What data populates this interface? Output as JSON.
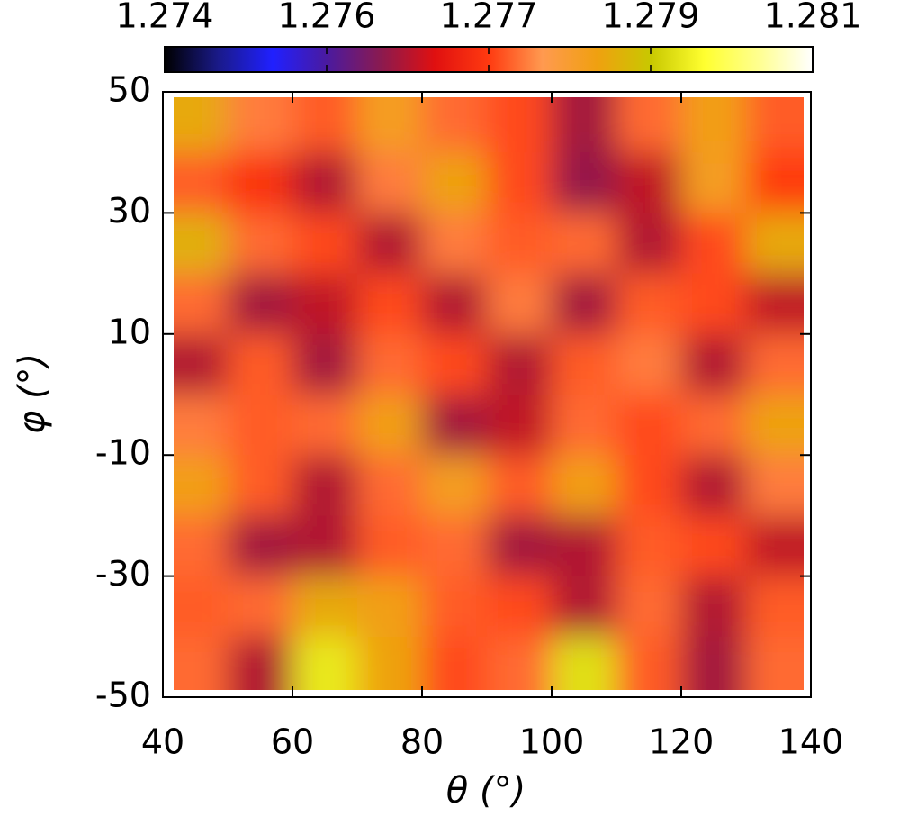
{
  "chart_data": {
    "type": "heatmap",
    "xlabel": "θ (°)",
    "ylabel": "φ (°)",
    "xlim": [
      40,
      140
    ],
    "ylim": [
      -50,
      50
    ],
    "xticks": [
      40,
      60,
      80,
      100,
      120,
      140
    ],
    "yticks": [
      -50,
      -30,
      -10,
      10,
      30,
      50
    ],
    "x": [
      45,
      55,
      65,
      75,
      85,
      95,
      105,
      115,
      125,
      135
    ],
    "y": [
      45,
      35,
      25,
      15,
      5,
      -5,
      -15,
      -25,
      -35,
      -45
    ],
    "values": [
      [
        1.2788,
        1.2779,
        1.2777,
        1.2785,
        1.2778,
        1.2776,
        1.2765,
        1.2778,
        1.2786,
        1.2777
      ],
      [
        1.2777,
        1.2774,
        1.2766,
        1.2779,
        1.2787,
        1.2776,
        1.2764,
        1.2767,
        1.2785,
        1.2775
      ],
      [
        1.2789,
        1.2778,
        1.2776,
        1.2766,
        1.2779,
        1.2777,
        1.2778,
        1.2766,
        1.2776,
        1.2788
      ],
      [
        1.2778,
        1.2765,
        1.2767,
        1.2776,
        1.2766,
        1.2779,
        1.2765,
        1.2777,
        1.2776,
        1.2767
      ],
      [
        1.2766,
        1.2777,
        1.2765,
        1.2778,
        1.2776,
        1.2766,
        1.2777,
        1.2779,
        1.2766,
        1.2778
      ],
      [
        1.2779,
        1.2777,
        1.2778,
        1.2786,
        1.2765,
        1.2767,
        1.2778,
        1.2776,
        1.2778,
        1.2787
      ],
      [
        1.2786,
        1.2777,
        1.2766,
        1.2778,
        1.2785,
        1.2777,
        1.2786,
        1.2776,
        1.2766,
        1.2779
      ],
      [
        1.2778,
        1.2765,
        1.2766,
        1.2777,
        1.2778,
        1.2765,
        1.2766,
        1.2777,
        1.2776,
        1.2767
      ],
      [
        1.2777,
        1.2778,
        1.2788,
        1.2786,
        1.2777,
        1.2776,
        1.2766,
        1.2778,
        1.2766,
        1.2777
      ],
      [
        1.2778,
        1.2766,
        1.2796,
        1.2787,
        1.2776,
        1.2778,
        1.2795,
        1.2777,
        1.2765,
        1.2778
      ]
    ],
    "clim": [
      1.274,
      1.281
    ],
    "cticks": [
      {
        "value": 1.274,
        "label": "1.274"
      },
      {
        "value": 1.27575,
        "label": "1.276"
      },
      {
        "value": 1.2775,
        "label": "1.277"
      },
      {
        "value": 1.27925,
        "label": "1.279"
      },
      {
        "value": 1.281,
        "label": "1.281"
      }
    ],
    "colormap": [
      "#000000",
      "#1a1a8a",
      "#2020ff",
      "#4a1aa0",
      "#8a1a50",
      "#e01010",
      "#ff3a10",
      "#ff9a50",
      "#f0a010",
      "#c8c800",
      "#ffff30",
      "#ffff90",
      "#ffffff"
    ]
  }
}
